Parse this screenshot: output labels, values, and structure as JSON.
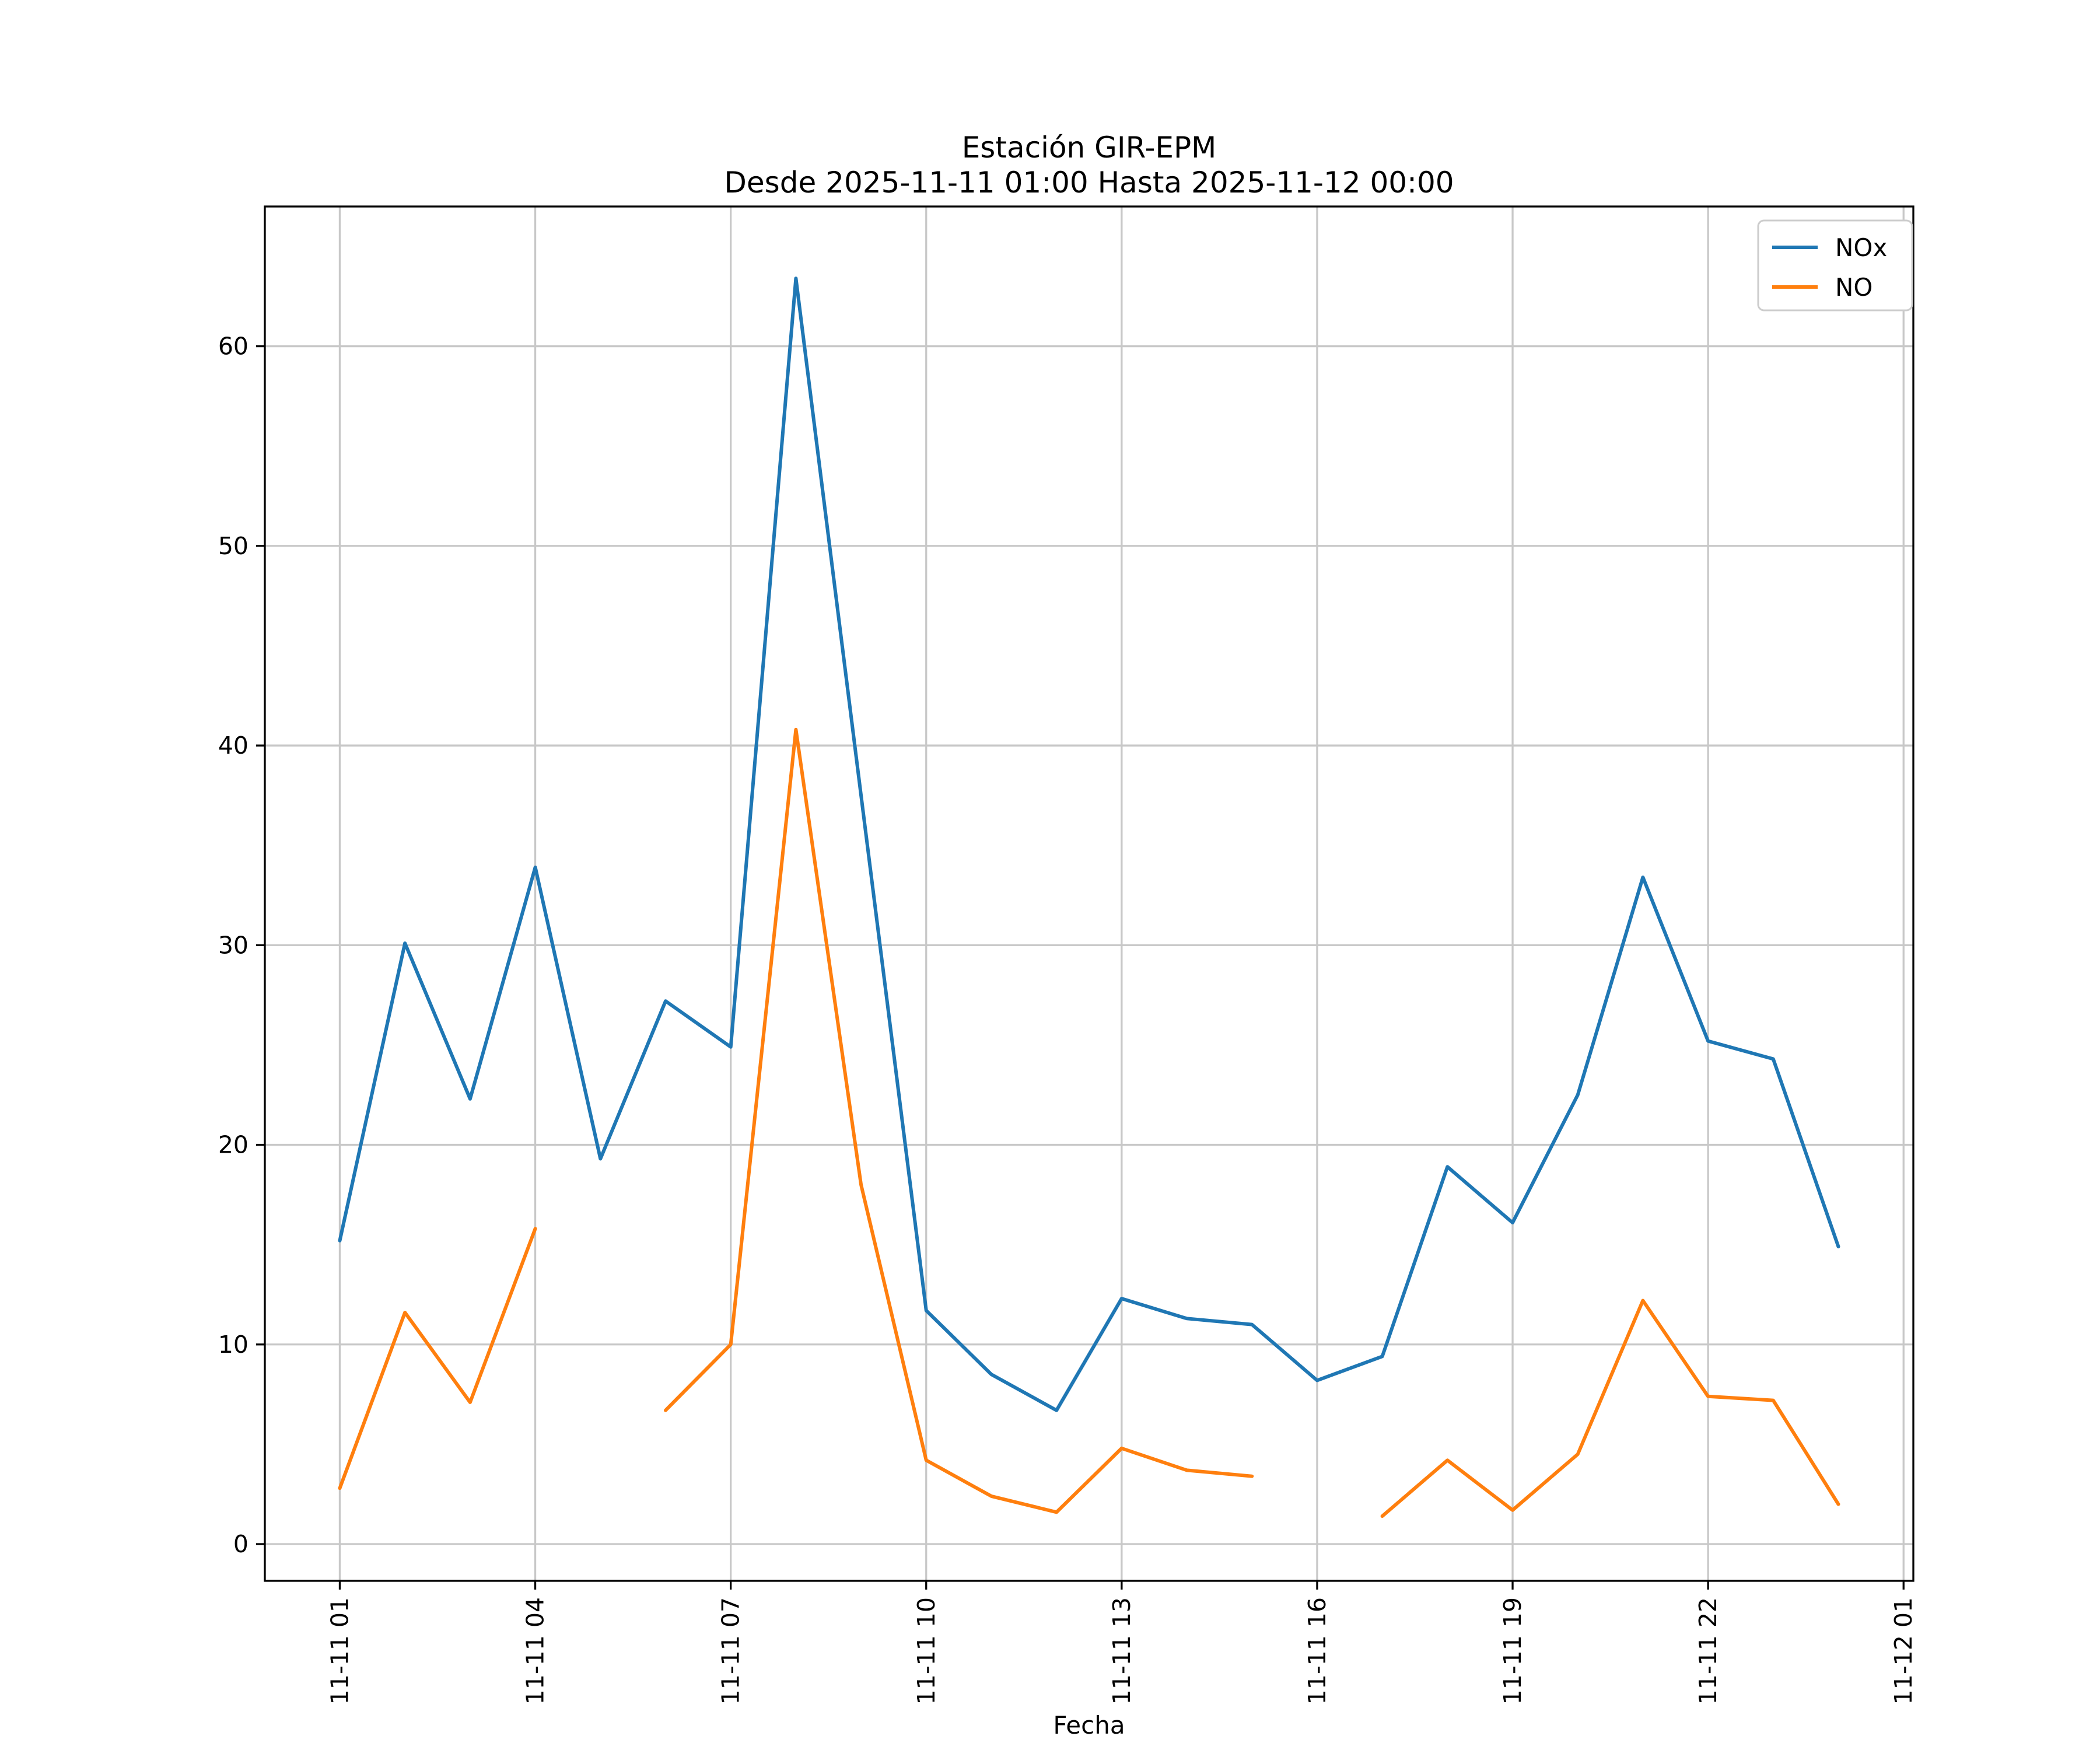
{
  "chart_data": {
    "type": "line",
    "title_line1": "Estación GIR-EPM",
    "title_line2": "Desde 2025-11-11 01:00 Hasta 2025-11-12 00:00",
    "xlabel": "Fecha",
    "ylabel": "",
    "grid": true,
    "legend_position": "upper right",
    "xlim": [
      -0.15,
      25.15
    ],
    "ylim": [
      -1.84,
      67.0
    ],
    "y_ticks": [
      0,
      10,
      20,
      30,
      40,
      50,
      60
    ],
    "x_ticks": [
      {
        "hour": 1,
        "label": "11-11 01"
      },
      {
        "hour": 4,
        "label": "11-11 04"
      },
      {
        "hour": 7,
        "label": "11-11 07"
      },
      {
        "hour": 10,
        "label": "11-11 10"
      },
      {
        "hour": 13,
        "label": "11-11 13"
      },
      {
        "hour": 16,
        "label": "11-11 16"
      },
      {
        "hour": 19,
        "label": "11-11 19"
      },
      {
        "hour": 22,
        "label": "11-11 22"
      },
      {
        "hour": 25,
        "label": "11-12 01"
      }
    ],
    "x_hours": [
      1,
      2,
      3,
      4,
      5,
      6,
      7,
      8,
      9,
      10,
      11,
      12,
      13,
      14,
      15,
      16,
      17,
      18,
      19,
      20,
      21,
      22,
      23,
      24
    ],
    "series": [
      {
        "name": "NOx",
        "color": "#1f77b4",
        "values": [
          15.2,
          30.1,
          22.3,
          33.9,
          19.3,
          27.2,
          24.9,
          63.4,
          37.5,
          11.7,
          8.5,
          6.7,
          12.3,
          11.3,
          11.0,
          8.2,
          9.4,
          18.9,
          16.1,
          22.5,
          33.4,
          25.2,
          24.3,
          14.9
        ]
      },
      {
        "name": "NO",
        "color": "#ff7f0e",
        "values": [
          2.8,
          11.6,
          7.1,
          15.8,
          null,
          6.7,
          10.0,
          40.8,
          18.0,
          4.2,
          2.4,
          1.6,
          4.8,
          3.7,
          3.4,
          null,
          1.4,
          4.2,
          1.7,
          4.5,
          12.2,
          7.4,
          7.2,
          2.0
        ]
      }
    ]
  }
}
